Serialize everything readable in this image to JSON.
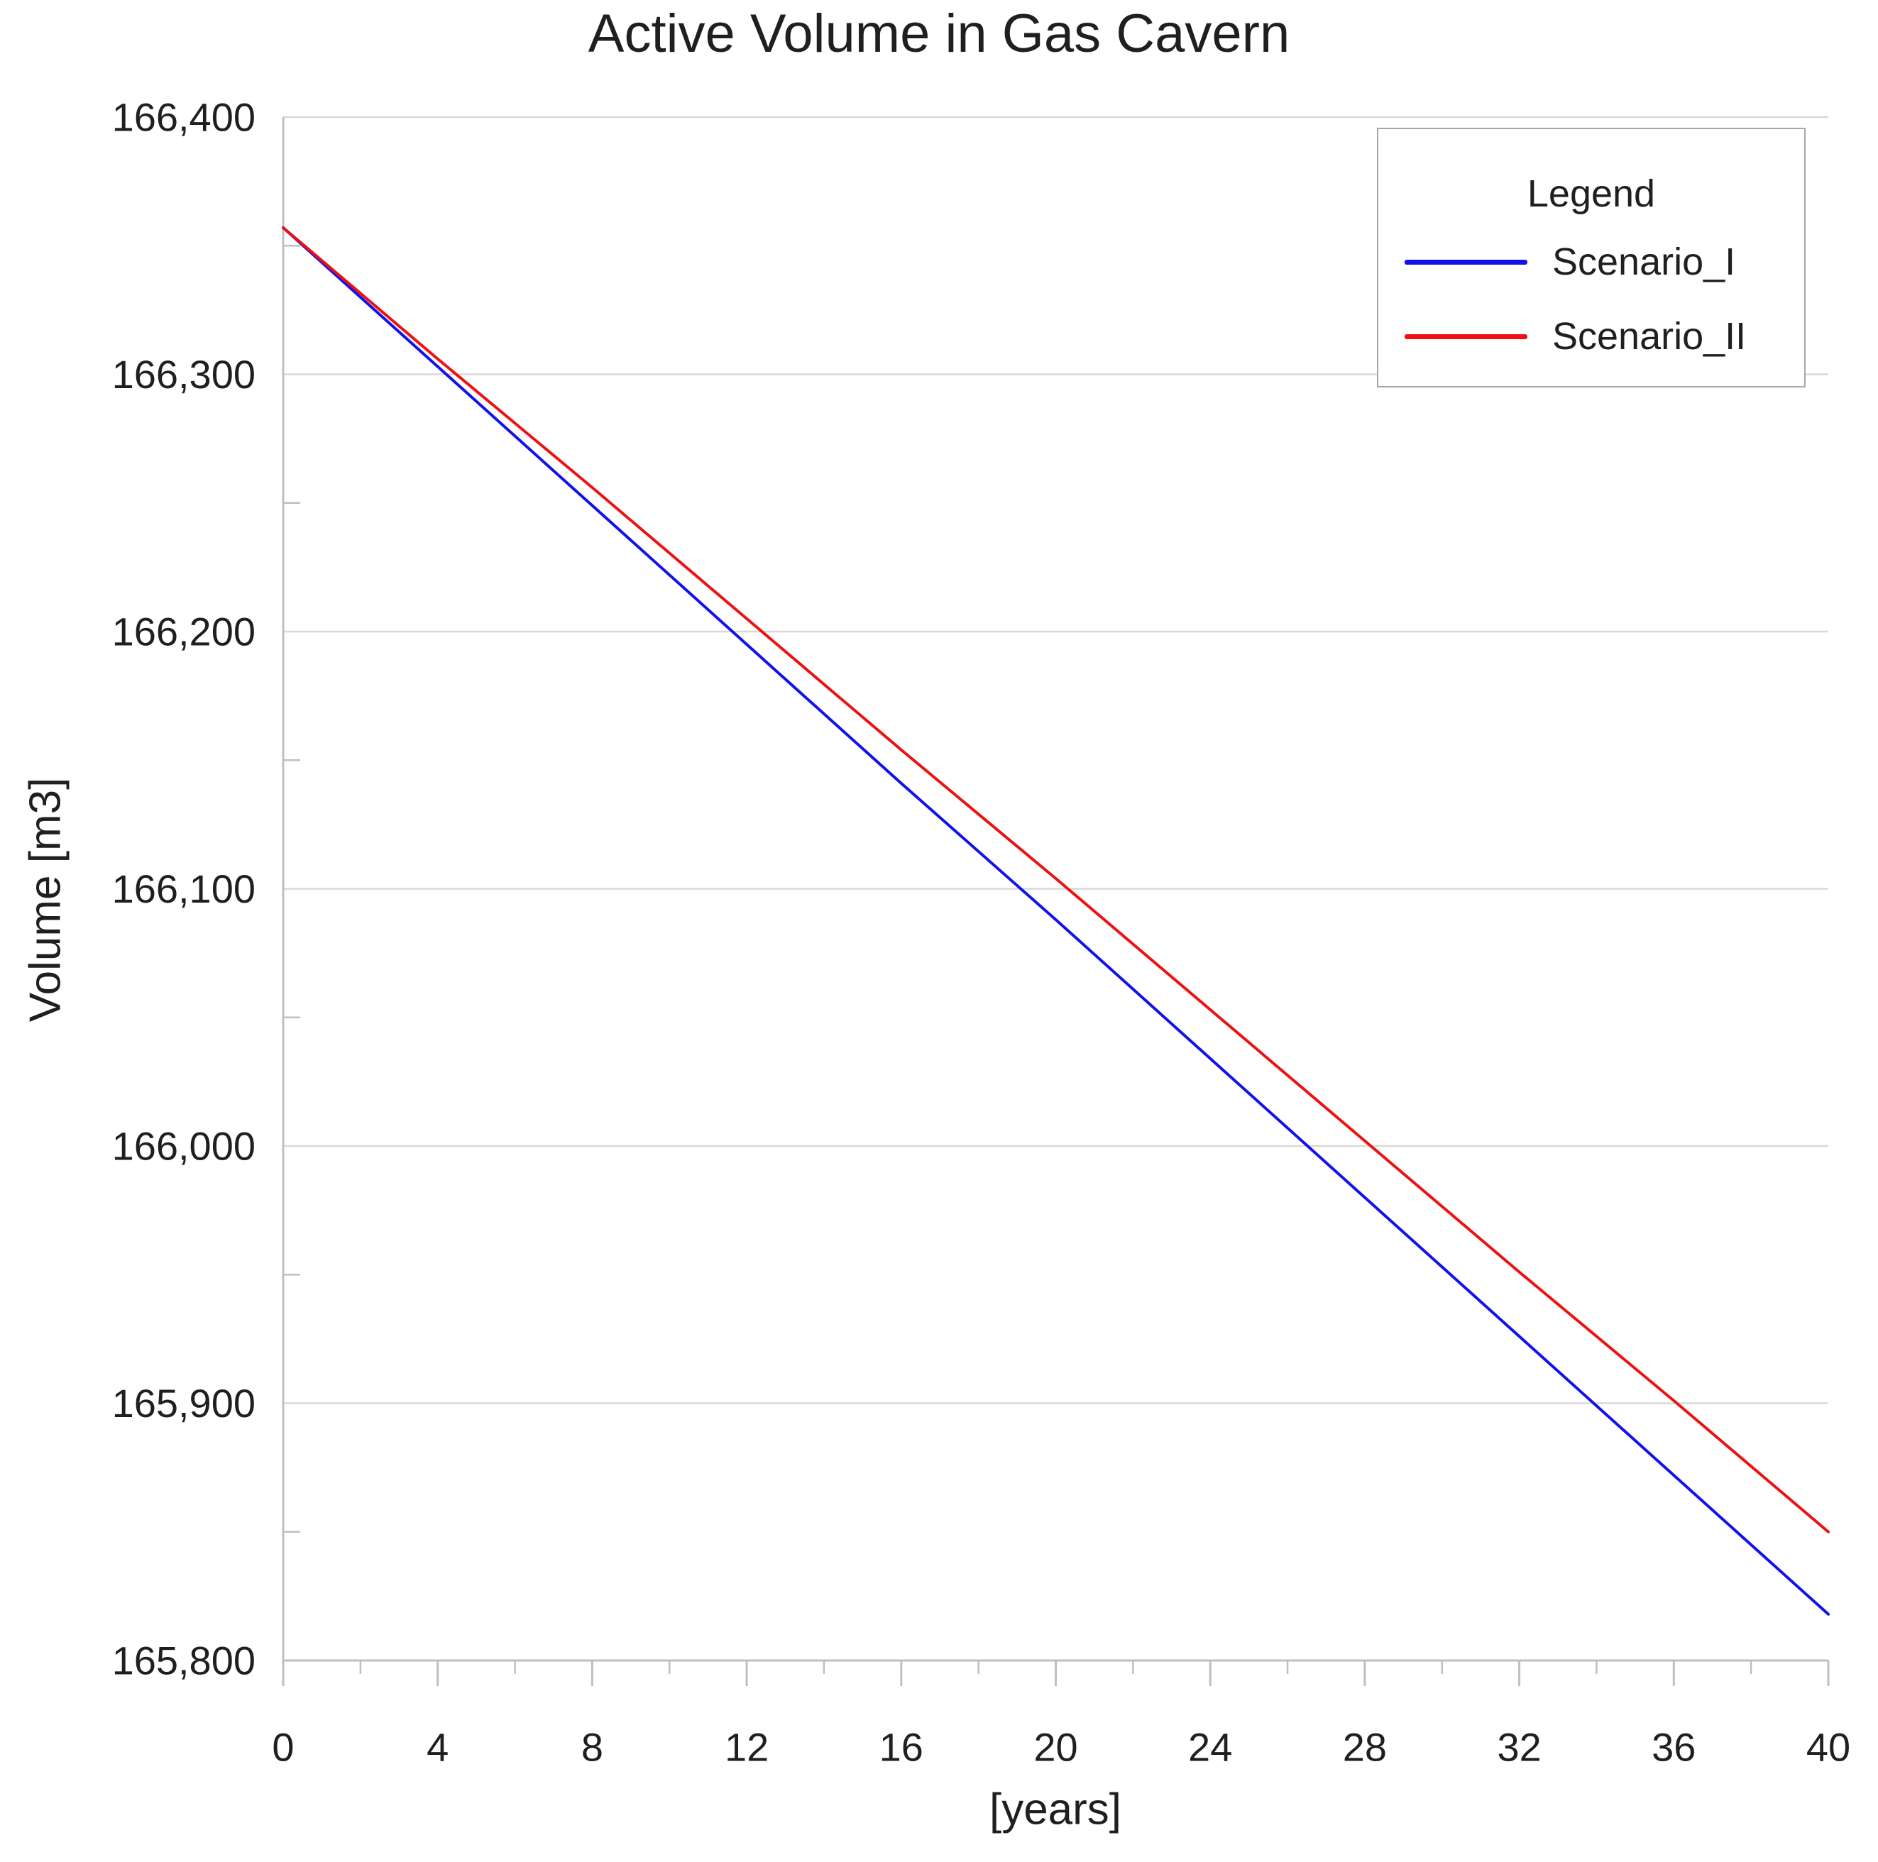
{
  "colors": {
    "background": "#FFFFFF",
    "gridline": "#D9D9D9",
    "axis": "#BFBFBF",
    "tick": "#BFBFBF",
    "text": "#1F1F1F",
    "legend_border": "#A6A6A6",
    "scenario_1": "#1111EE",
    "scenario_2": "#EE1111"
  },
  "chart_data": {
    "type": "line",
    "title": "Active Volume in Gas Cavern",
    "xlabel": "[years]",
    "ylabel": "Volume [m3]",
    "xlim": [
      0,
      40
    ],
    "ylim": [
      165800,
      166400
    ],
    "grid": "horizontal-major-only",
    "x_major_ticks": [
      0,
      4,
      8,
      12,
      16,
      20,
      24,
      28,
      32,
      36,
      40
    ],
    "x_minor_ticks": [
      2,
      6,
      10,
      14,
      18,
      22,
      26,
      30,
      34,
      38
    ],
    "y_major_ticks": [
      166400,
      166300,
      166200,
      166100,
      166000,
      165900,
      165800
    ],
    "y_minor_ticks": [
      166350,
      166250,
      166150,
      166050,
      165950,
      165850
    ],
    "legend": {
      "title": "Legend",
      "position": "top-right"
    },
    "x": [
      0,
      4,
      8,
      12,
      16,
      20,
      24,
      28,
      32,
      36,
      40
    ],
    "series": [
      {
        "name": "Scenario_I",
        "color": "#1111EE",
        "values": [
          166357,
          166303,
          166249,
          166195,
          166141,
          166088,
          166034,
          165980,
          165926,
          165872,
          165818
        ]
      },
      {
        "name": "Scenario_II",
        "color": "#EE1111",
        "values": [
          166357,
          166306,
          166256,
          166205,
          166154,
          166104,
          166053,
          166002,
          165951,
          165901,
          165850
        ]
      }
    ]
  }
}
